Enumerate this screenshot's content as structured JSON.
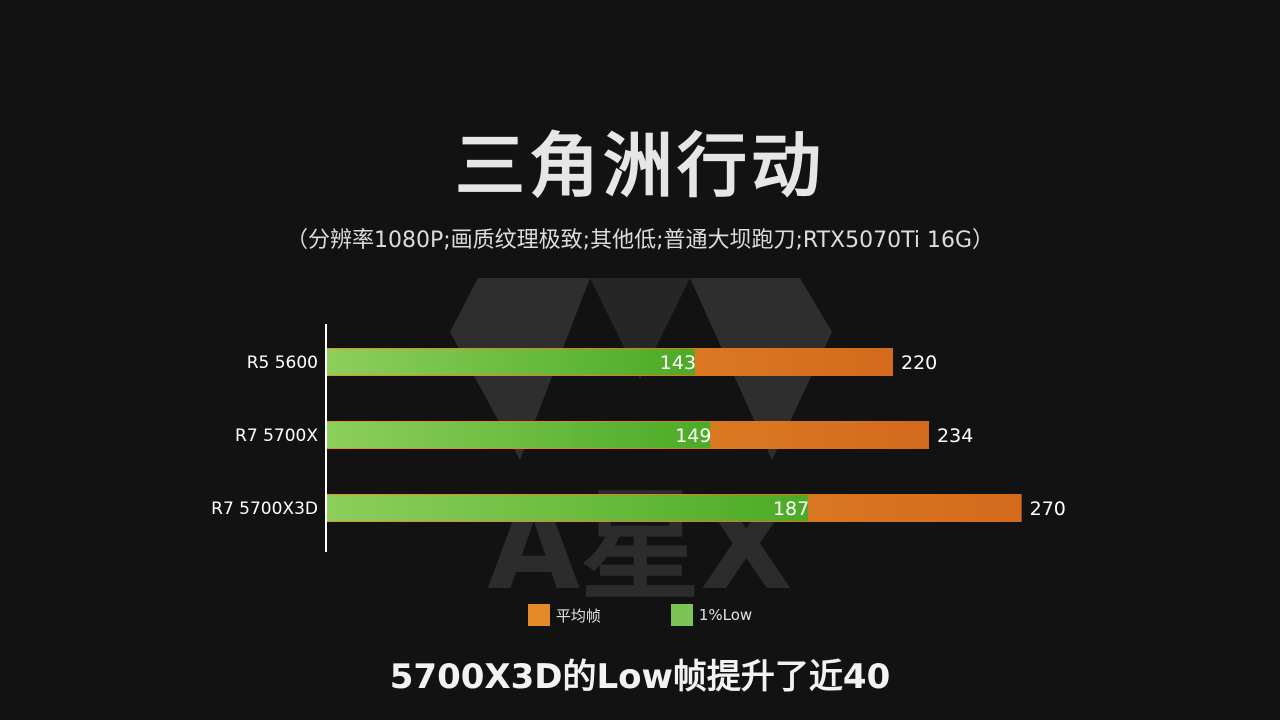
{
  "title": "三角洲行动",
  "subtitle": "（分辨率1080P;画质纹理极致;其他低;普通大坝跑刀;RTX5070Ti 16G）",
  "caption": "5700X3D的Low帧提升了近40",
  "watermark": {
    "text": "A星X"
  },
  "colors": {
    "background": "#121212",
    "avg_start": "#e8912e",
    "avg_end": "#d46a1c",
    "low_start": "#8ccf5c",
    "low_end": "#4caa26",
    "axis": "#ffffff",
    "label": "#ffffff",
    "watermark": "#3a3a3a"
  },
  "legend": {
    "items": [
      {
        "label": "平均帧",
        "color": "#e38a2a"
      },
      {
        "label": "1%Low",
        "color": "#7cc454"
      }
    ]
  },
  "chart_data": {
    "type": "bar",
    "orientation": "horizontal",
    "categories": [
      "R5 5600",
      "R7 5700X",
      "R7 5700X3D"
    ],
    "series": [
      {
        "name": "平均帧",
        "values": [
          220,
          234,
          270
        ]
      },
      {
        "name": "1%Low",
        "values": [
          143,
          149,
          187
        ]
      }
    ],
    "xlim": [
      0,
      270
    ],
    "grid": false,
    "legend_position": "bottom"
  }
}
